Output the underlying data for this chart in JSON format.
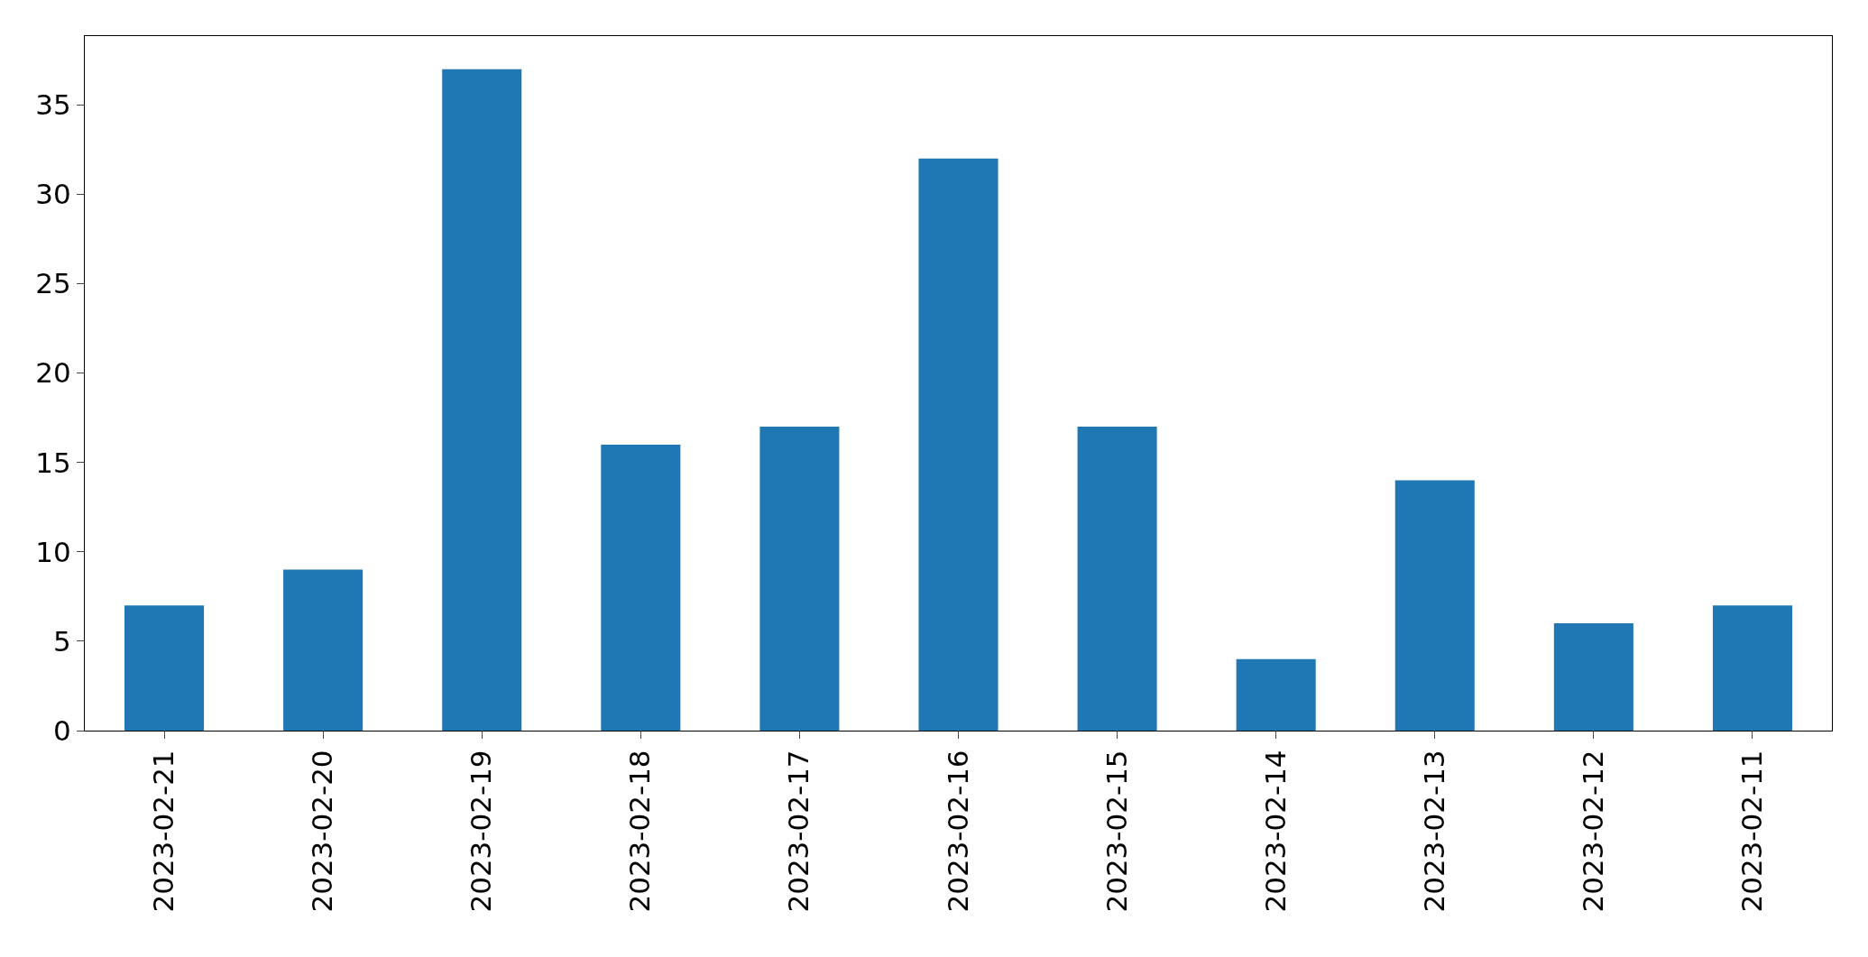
{
  "chart_data": {
    "type": "bar",
    "categories": [
      "2023-02-21",
      "2023-02-20",
      "2023-02-19",
      "2023-02-18",
      "2023-02-17",
      "2023-02-16",
      "2023-02-15",
      "2023-02-14",
      "2023-02-13",
      "2023-02-12",
      "2023-02-11"
    ],
    "values": [
      7,
      9,
      37,
      16,
      17,
      32,
      17,
      4,
      14,
      6,
      7
    ],
    "color": "#1f77b4",
    "ylim": [
      0,
      38.85
    ],
    "yticks": [
      0,
      5,
      10,
      15,
      20,
      25,
      30,
      35
    ]
  }
}
